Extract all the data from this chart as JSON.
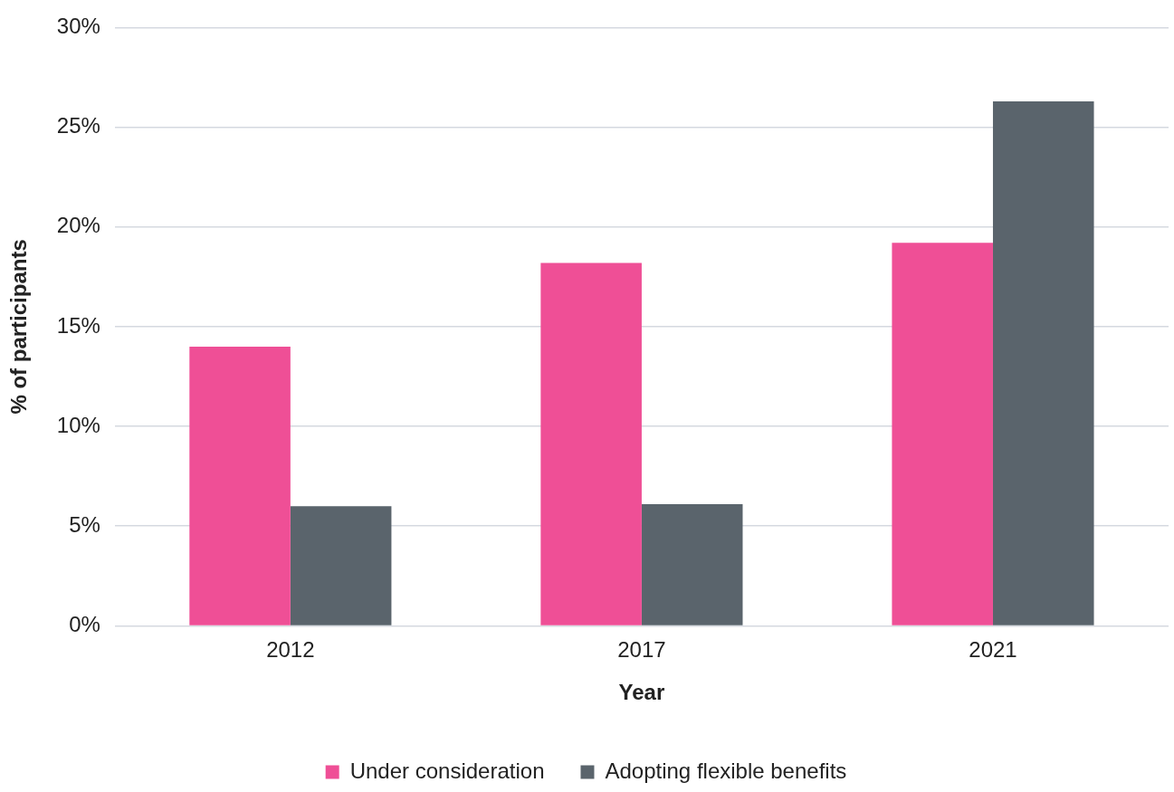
{
  "chart_data": {
    "type": "bar",
    "xlabel": "Year",
    "ylabel": "% of participants",
    "categories": [
      "2012",
      "2017",
      "2021"
    ],
    "series": [
      {
        "name": "Under consideration",
        "color": "#ef4f96",
        "values": [
          14,
          18.2,
          19.2
        ]
      },
      {
        "name": "Adopting flexible benefits",
        "color": "#5a646c",
        "values": [
          6,
          6.1,
          26.3
        ]
      }
    ],
    "ylim": [
      0,
      30
    ],
    "yticks": [
      {
        "value": 0,
        "label": "0%"
      },
      {
        "value": 5,
        "label": "5%"
      },
      {
        "value": 10,
        "label": "10%"
      },
      {
        "value": 15,
        "label": "15%"
      },
      {
        "value": 20,
        "label": "20%"
      },
      {
        "value": 25,
        "label": "25%"
      },
      {
        "value": 30,
        "label": "30%"
      }
    ],
    "grid": "y",
    "legend": "bottom"
  }
}
